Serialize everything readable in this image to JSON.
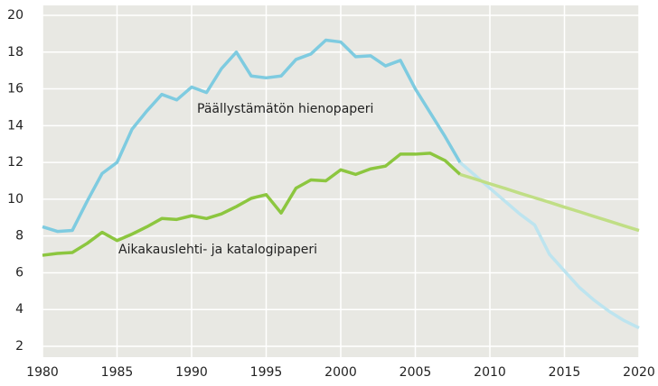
{
  "chart_data": {
    "type": "line",
    "x": [
      1980,
      1981,
      1982,
      1983,
      1984,
      1985,
      1986,
      1987,
      1988,
      1989,
      1990,
      1991,
      1992,
      1993,
      1994,
      1995,
      1996,
      1997,
      1998,
      1999,
      2000,
      2001,
      2002,
      2003,
      2004,
      2005,
      2006,
      2007,
      2008,
      2009,
      2010,
      2011,
      2012,
      2013,
      2014,
      2015,
      2016,
      2017,
      2018,
      2019,
      2020
    ],
    "series": [
      {
        "name": "Päällystämätön hienopaperi",
        "color": "#7ecbe0",
        "values": [
          8.5,
          8.25,
          8.3,
          9.9,
          11.4,
          12.0,
          13.8,
          14.8,
          15.7,
          15.4,
          16.1,
          15.8,
          17.1,
          18.0,
          16.7,
          16.6,
          16.7,
          17.6,
          17.9,
          18.65,
          18.55,
          17.75,
          17.8,
          17.25,
          17.55,
          16.0,
          14.7,
          13.4,
          12.0,
          null,
          null,
          null,
          null,
          null,
          null,
          null,
          null,
          null,
          null,
          null,
          null
        ]
      },
      {
        "color": "#bde4ef",
        "values": [
          null,
          null,
          null,
          null,
          null,
          null,
          null,
          null,
          null,
          null,
          null,
          null,
          null,
          null,
          null,
          null,
          null,
          null,
          null,
          null,
          null,
          null,
          null,
          null,
          null,
          null,
          null,
          null,
          12.0,
          11.3,
          10.6,
          9.9,
          9.2,
          8.6,
          7.0,
          6.1,
          5.2,
          4.5,
          3.9,
          3.4,
          3.0
        ]
      },
      {
        "name": "Aikakauslehti- ja katalogipaperi",
        "color": "#8cc63f",
        "values": [
          6.95,
          7.05,
          7.1,
          7.6,
          8.2,
          7.75,
          8.1,
          8.5,
          8.95,
          8.9,
          9.1,
          8.95,
          9.2,
          9.6,
          10.05,
          10.25,
          9.25,
          10.6,
          11.05,
          11.0,
          11.6,
          11.35,
          11.65,
          11.8,
          12.45,
          12.45,
          12.5,
          12.1,
          11.35,
          null,
          null,
          null,
          null,
          null,
          null,
          null,
          null,
          null,
          null,
          null,
          null
        ]
      },
      {
        "color": "#c0de85",
        "values": [
          null,
          null,
          null,
          null,
          null,
          null,
          null,
          null,
          null,
          null,
          null,
          null,
          null,
          null,
          null,
          null,
          null,
          null,
          null,
          null,
          null,
          null,
          null,
          null,
          null,
          null,
          null,
          null,
          11.35,
          11.1,
          10.84,
          10.59,
          10.33,
          10.08,
          9.83,
          9.57,
          9.32,
          9.06,
          8.81,
          8.55,
          8.3
        ]
      }
    ],
    "xlim": [
      1980,
      2020
    ],
    "xticks": [
      1980,
      1985,
      1990,
      1995,
      2000,
      2005,
      2010,
      2015,
      2020
    ],
    "ylim": [
      2,
      20
    ],
    "yticks": [
      2,
      4,
      6,
      8,
      10,
      12,
      14,
      16,
      18,
      20
    ],
    "grid": true
  }
}
